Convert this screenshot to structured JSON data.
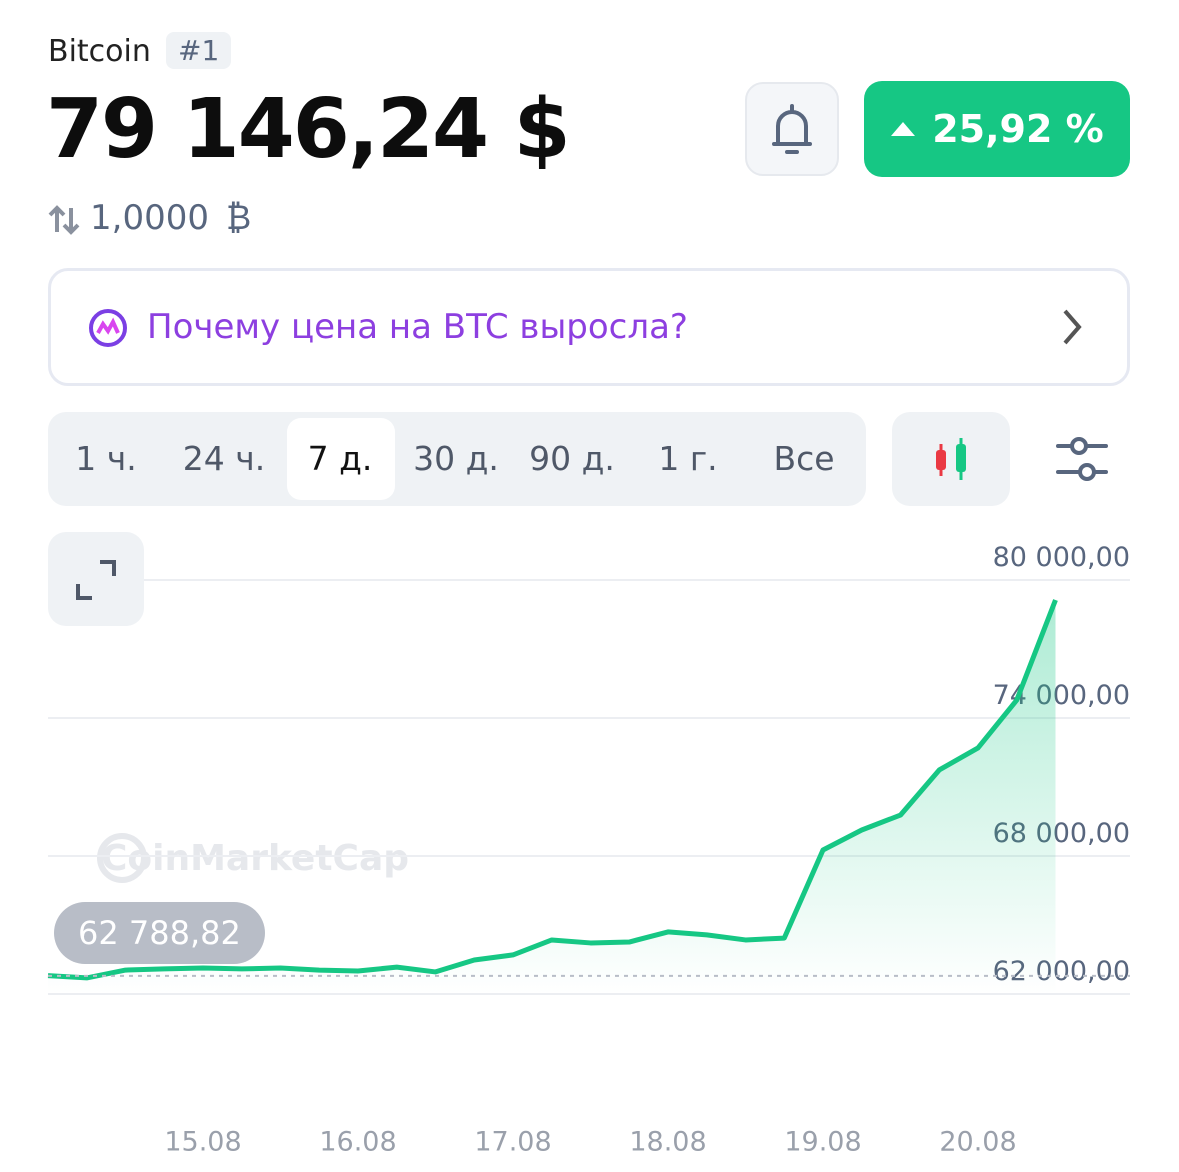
{
  "header": {
    "name": "Bitcoin",
    "rank": "#1",
    "price": "79 146,24 $",
    "change": "25,92 %",
    "conversion": "1,0000",
    "currency_symbol": "₿"
  },
  "banner": {
    "text": "Почему цена на BTC выросла?"
  },
  "timeframes": [
    "1 ч.",
    "24 ч.",
    "7 д.",
    "30 д.",
    "90 д.",
    "1 г.",
    "Все"
  ],
  "active_timeframe": 2,
  "watermark": "CoinMarketCap",
  "chart_data": {
    "type": "line",
    "categories": [
      null,
      null,
      null,
      null,
      "15.08",
      null,
      null,
      null,
      "16.08",
      null,
      null,
      null,
      "17.08",
      null,
      null,
      null,
      "18.08",
      null,
      null,
      null,
      "19.08",
      null,
      null,
      null,
      "20.08",
      null,
      null
    ],
    "values": [
      62800,
      62700,
      63040,
      63090,
      63130,
      63090,
      63130,
      63040,
      63000,
      63170,
      62960,
      63480,
      63700,
      64350,
      64220,
      64260,
      64700,
      64570,
      64350,
      64430,
      68260,
      69130,
      69780,
      71740,
      72700,
      74780,
      79130
    ],
    "color": "#16c784",
    "ylim": [
      62000,
      80000
    ],
    "yticks": [
      {
        "value": 62000,
        "label": "62 000,00"
      },
      {
        "value": 68000,
        "label": "68 000,00"
      },
      {
        "value": 74000,
        "label": "74 000,00"
      },
      {
        "value": 80000,
        "label": "80 000,00"
      }
    ],
    "grid": true,
    "reference": {
      "value": 62788.82,
      "label": "62 788,82"
    }
  }
}
